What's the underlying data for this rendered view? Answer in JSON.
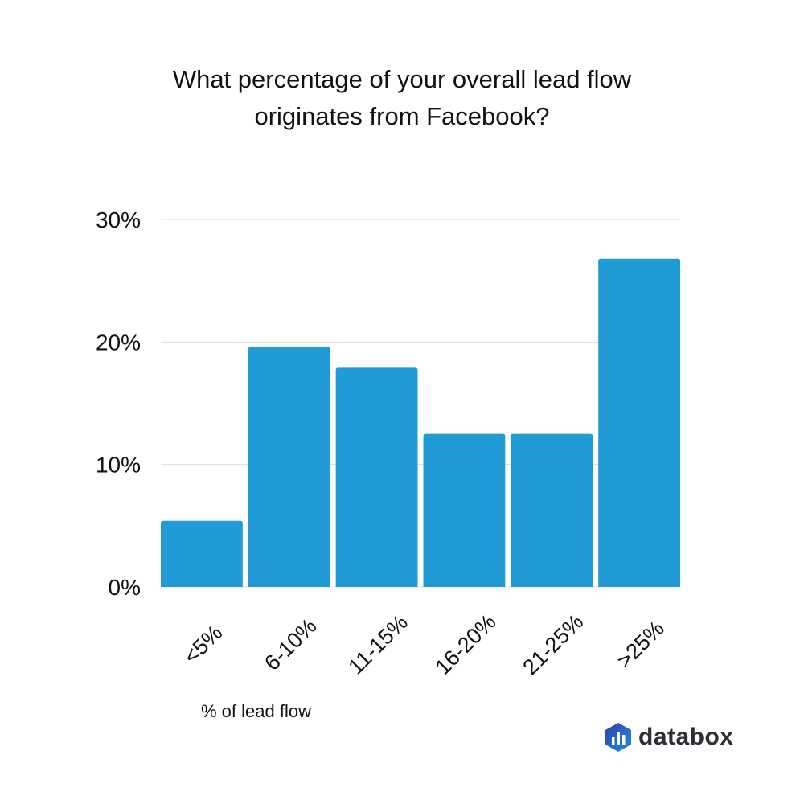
{
  "chart_data": {
    "type": "bar",
    "title": "What percentage of your overall lead flow originates from Facebook?",
    "title_lines": [
      "What percentage of your overall lead flow",
      "originates from Facebook?"
    ],
    "categories": [
      "<5%",
      "6-10%",
      "11-15%",
      "16-20%",
      "21-25%",
      ">25%"
    ],
    "values": [
      5.4,
      19.6,
      17.9,
      12.5,
      12.5,
      26.8
    ],
    "xlabel": "% of lead flow",
    "ylabel": "",
    "ylim": [
      0,
      30
    ],
    "yticks": [
      0,
      10,
      20,
      30
    ],
    "ytick_labels": [
      "0%",
      "10%",
      "20%",
      "30%"
    ],
    "grid": true,
    "bar_color": "#209bd6"
  },
  "brand": {
    "name": "databox"
  }
}
